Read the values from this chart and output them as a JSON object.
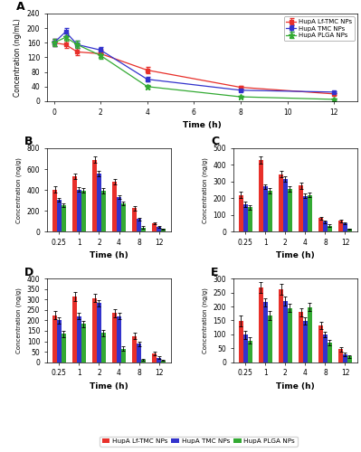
{
  "panel_A": {
    "title": "A",
    "xlabel": "Time (h)",
    "ylabel": "Concentration (ng/mL)",
    "ylim": [
      0,
      240
    ],
    "yticks": [
      0,
      40,
      80,
      120,
      160,
      200,
      240
    ],
    "xticks": [
      0,
      2,
      4,
      6,
      8,
      10,
      12
    ],
    "series": {
      "Lf-TMC": {
        "x": [
          0,
          0.5,
          1,
          2,
          4,
          8,
          12
        ],
        "y": [
          160,
          155,
          135,
          130,
          85,
          38,
          20
        ],
        "yerr": [
          10,
          10,
          10,
          10,
          8,
          5,
          3
        ],
        "color": "#e8302a",
        "marker": "s"
      },
      "TMC": {
        "x": [
          0,
          0.5,
          1,
          2,
          4,
          8,
          12
        ],
        "y": [
          160,
          190,
          155,
          140,
          60,
          30,
          25
        ],
        "yerr": [
          10,
          10,
          10,
          8,
          6,
          4,
          3
        ],
        "color": "#3333cc",
        "marker": "s"
      },
      "PLGA": {
        "x": [
          0,
          0.5,
          1,
          2,
          4,
          8,
          12
        ],
        "y": [
          160,
          175,
          155,
          125,
          40,
          12,
          5
        ],
        "yerr": [
          10,
          10,
          10,
          8,
          5,
          3,
          2
        ],
        "color": "#33aa33",
        "marker": "*"
      }
    }
  },
  "bar_time_labels": [
    "0.25",
    "1",
    "2",
    "4",
    "8",
    "12"
  ],
  "bar_colors": {
    "Lf-TMC": "#e8302a",
    "TMC": "#3333cc",
    "PLGA": "#33aa33"
  },
  "panel_B": {
    "title": "B",
    "xlabel": "Time (h)",
    "ylabel": "Concentration (ng/g)",
    "ylim": [
      0,
      800
    ],
    "yticks": [
      0,
      200,
      400,
      600,
      800
    ],
    "Lf_TMC": [
      405,
      530,
      690,
      480,
      225,
      80
    ],
    "Lf_TMC_err": [
      30,
      25,
      30,
      25,
      20,
      10
    ],
    "TMC": [
      305,
      405,
      555,
      330,
      120,
      45
    ],
    "TMC_err": [
      20,
      20,
      25,
      20,
      15,
      8
    ],
    "PLGA": [
      255,
      395,
      390,
      270,
      40,
      25
    ],
    "PLGA_err": [
      20,
      20,
      25,
      20,
      10,
      5
    ]
  },
  "panel_C": {
    "title": "C",
    "xlabel": "Time (h)",
    "ylabel": "Concentration (ng/g)",
    "ylim": [
      0,
      500
    ],
    "yticks": [
      0,
      100,
      200,
      300,
      400,
      500
    ],
    "Lf_TMC": [
      220,
      430,
      345,
      275,
      80,
      65
    ],
    "Lf_TMC_err": [
      20,
      20,
      20,
      20,
      10,
      8
    ],
    "TMC": [
      165,
      270,
      315,
      215,
      60,
      50
    ],
    "TMC_err": [
      15,
      15,
      15,
      15,
      8,
      6
    ],
    "PLGA": [
      145,
      245,
      255,
      220,
      35,
      15
    ],
    "PLGA_err": [
      15,
      15,
      15,
      15,
      8,
      5
    ]
  },
  "panel_D": {
    "title": "D",
    "xlabel": "Time (h)",
    "ylabel": "Concentration (ng/g)",
    "ylim": [
      0,
      400
    ],
    "yticks": [
      0,
      50,
      100,
      150,
      200,
      250,
      300,
      350,
      400
    ],
    "Lf_TMC": [
      225,
      315,
      308,
      235,
      125,
      42
    ],
    "Lf_TMC_err": [
      20,
      20,
      20,
      20,
      15,
      8
    ],
    "TMC": [
      200,
      220,
      283,
      220,
      88,
      22
    ],
    "TMC_err": [
      15,
      15,
      15,
      15,
      10,
      5
    ],
    "PLGA": [
      135,
      183,
      140,
      65,
      12,
      8
    ],
    "PLGA_err": [
      15,
      15,
      15,
      10,
      5,
      3
    ]
  },
  "panel_E": {
    "title": "E",
    "xlabel": "Time (h)",
    "ylabel": "Concentration (ng/g)",
    "ylim": [
      0,
      300
    ],
    "yticks": [
      0,
      50,
      100,
      150,
      200,
      250,
      300
    ],
    "Lf_TMC": [
      148,
      268,
      262,
      180,
      132,
      47
    ],
    "Lf_TMC_err": [
      20,
      20,
      20,
      15,
      12,
      8
    ],
    "TMC": [
      98,
      215,
      220,
      148,
      100,
      28
    ],
    "TMC_err": [
      15,
      15,
      15,
      12,
      10,
      5
    ],
    "PLGA": [
      78,
      168,
      195,
      198,
      70,
      20
    ],
    "PLGA_err": [
      12,
      15,
      15,
      15,
      10,
      5
    ]
  },
  "legend_labels": [
    "HupA Lf-TMC NPs",
    "HupA TMC NPs",
    "HupA PLGA NPs"
  ],
  "line_legend_labels": [
    "HupA Lf-TMC NPs",
    "HupA TMC NPs",
    "HupA PLGA NPs"
  ]
}
